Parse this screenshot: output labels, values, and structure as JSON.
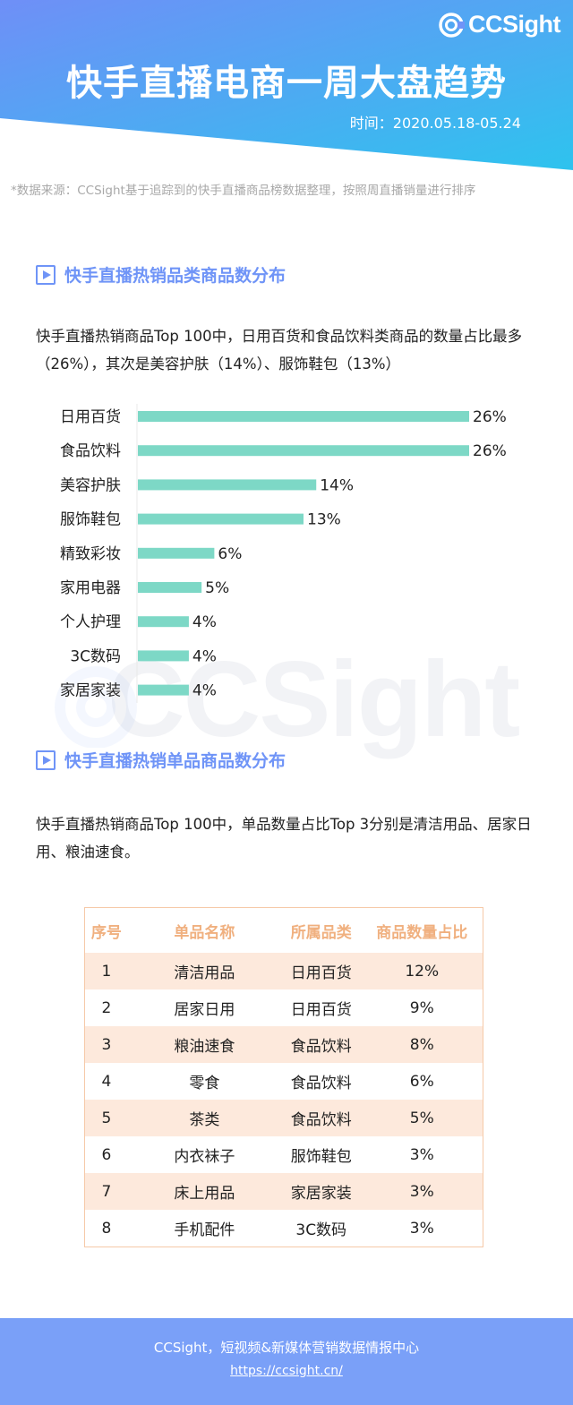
{
  "header": {
    "brand": "CCSight",
    "title": "快手直播电商一周大盘趋势",
    "date": "时间：2020.05.18-05.24"
  },
  "source_note": "*数据来源：CCSight基于追踪到的快手直播商品榜数据整理，按照周直播销量进行排序",
  "section1": {
    "title": "快手直播热销品类商品数分布",
    "desc": "快手直播热销商品Top 100中，日用百货和食品饮料类商品的数量占比最多（26%），其次是美容护肤（14%）、服饰鞋包（13%）"
  },
  "section2": {
    "title": "快手直播热销单品商品数分布",
    "desc": "快手直播热销商品Top 100中，单品数量占比Top 3分别是清洁用品、居家日用、粮油速食。"
  },
  "chart_data": {
    "type": "bar",
    "orientation": "horizontal",
    "categories": [
      "日用百货",
      "食品饮料",
      "美容护肤",
      "服饰鞋包",
      "精致彩妆",
      "家用电器",
      "个人护理",
      "3C数码",
      "家居家装"
    ],
    "values": [
      26,
      26,
      14,
      13,
      6,
      5,
      4,
      4,
      4
    ],
    "labels": [
      "26%",
      "26%",
      "14%",
      "13%",
      "6%",
      "5%",
      "4%",
      "4%",
      "4%"
    ],
    "unit": "%",
    "xlim": [
      0,
      26
    ],
    "bar_color": "#7dd8c6",
    "grid": false
  },
  "table": {
    "headers": [
      "序号",
      "单品名称",
      "所属品类",
      "商品数量占比"
    ],
    "rows": [
      [
        "1",
        "清洁用品",
        "日用百货",
        "12%"
      ],
      [
        "2",
        "居家日用",
        "日用百货",
        "9%"
      ],
      [
        "3",
        "粮油速食",
        "食品饮料",
        "8%"
      ],
      [
        "4",
        "零食",
        "食品饮料",
        "6%"
      ],
      [
        "5",
        "茶类",
        "食品饮料",
        "5%"
      ],
      [
        "6",
        "内衣袜子",
        "服饰鞋包",
        "3%"
      ],
      [
        "7",
        "床上用品",
        "家居家装",
        "3%"
      ],
      [
        "8",
        "手机配件",
        "3C数码",
        "3%"
      ]
    ]
  },
  "footer": {
    "line": "CCSight，短视频&新媒体营销数据情报中心",
    "link": "https://ccsight.cn/"
  },
  "colors": {
    "header_blue": "#6f94f7",
    "header_cyan": "#2ec3ee",
    "accent": "#6f94f7",
    "table_header": "#f0b07f",
    "table_stripe": "#fde9dc",
    "footer": "#7aa0f8"
  }
}
